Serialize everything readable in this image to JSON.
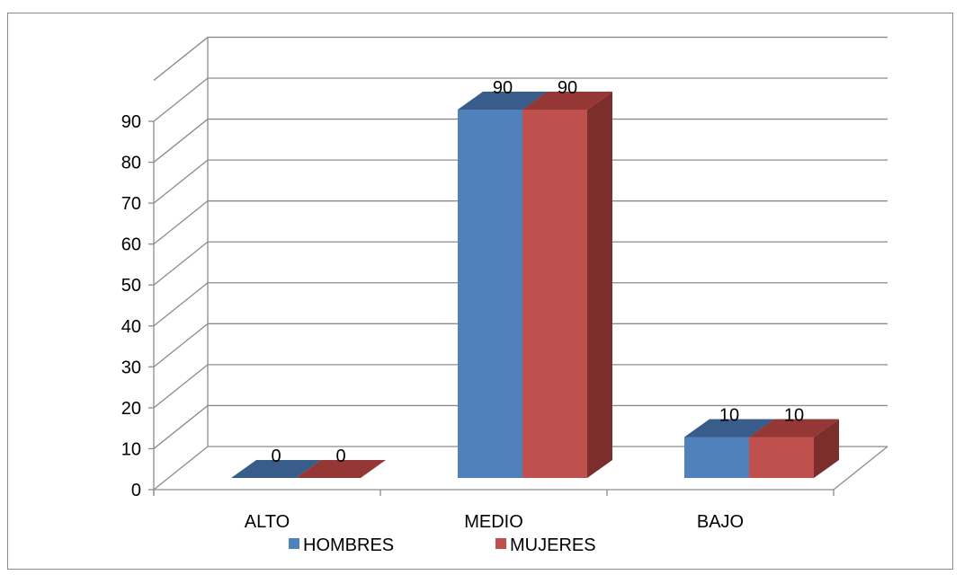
{
  "chart_data": {
    "type": "bar",
    "categories": [
      "ALTO",
      "MEDIO",
      "BAJO"
    ],
    "series": [
      {
        "name": "HOMBRES",
        "values": [
          0,
          90,
          10
        ],
        "color": "#4F81BD",
        "top_color": "#385D8A",
        "side_color": "#2E4B70"
      },
      {
        "name": "MUJERES",
        "values": [
          0,
          90,
          10
        ],
        "color": "#C0504D",
        "top_color": "#953735",
        "side_color": "#7B2E2C"
      }
    ],
    "yticks": [
      "0",
      "10",
      "20",
      "30",
      "40",
      "50",
      "60",
      "70",
      "80",
      "90"
    ],
    "ylim": [
      0,
      90
    ],
    "grid": true,
    "three_d": true,
    "legend_position": "bottom"
  }
}
